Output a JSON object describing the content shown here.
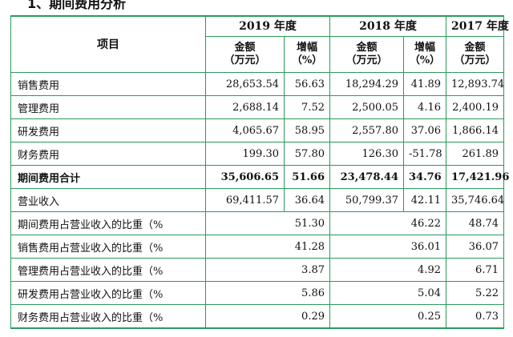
{
  "heading": "1、期间费用分析",
  "table": {
    "item_header": "项目",
    "years": [
      "2019 年度",
      "2018 年度",
      "2017 年度"
    ],
    "sub_headers": {
      "amount": [
        "金额",
        "（万元）"
      ],
      "growth": [
        "增幅",
        "（%）"
      ]
    },
    "rows": [
      {
        "label": "销售费用",
        "v": [
          "28,653.54",
          "56.63",
          "18,294.29",
          "41.89",
          "12,893.74"
        ]
      },
      {
        "label": "管理费用",
        "v": [
          "2,688.14",
          "7.52",
          "2,500.05",
          "4.16",
          "2,400.19"
        ]
      },
      {
        "label": "研发费用",
        "v": [
          "4,065.67",
          "58.95",
          "2,557.80",
          "37.06",
          "1,866.14"
        ]
      },
      {
        "label": "财务费用",
        "v": [
          "199.30",
          "57.80",
          "126.30",
          "-51.78",
          "261.89"
        ]
      },
      {
        "label": "期间费用合计",
        "v": [
          "35,606.65",
          "51.66",
          "23,478.44",
          "34.76",
          "17,421.96"
        ]
      },
      {
        "label": "营业收入",
        "v": [
          "69,411.57",
          "36.64",
          "50,799.37",
          "42.11",
          "35,746.64"
        ]
      }
    ],
    "ratio_rows": [
      {
        "label": "期间费用占营业收入的比重（%",
        "v": [
          "51.30",
          "46.22",
          "48.74"
        ]
      },
      {
        "label": "销售费用占营业收入的比重（%",
        "v": [
          "41.28",
          "36.01",
          "36.07"
        ]
      },
      {
        "label": "管理费用占营业收入的比重（%",
        "v": [
          "3.87",
          "4.92",
          "6.71"
        ]
      },
      {
        "label": "研发费用占营业收入的比重（%",
        "v": [
          "5.86",
          "5.04",
          "5.22"
        ]
      },
      {
        "label": "财务费用占营业收入的比重（%",
        "v": [
          "0.29",
          "0.25",
          "0.73"
        ]
      }
    ]
  }
}
